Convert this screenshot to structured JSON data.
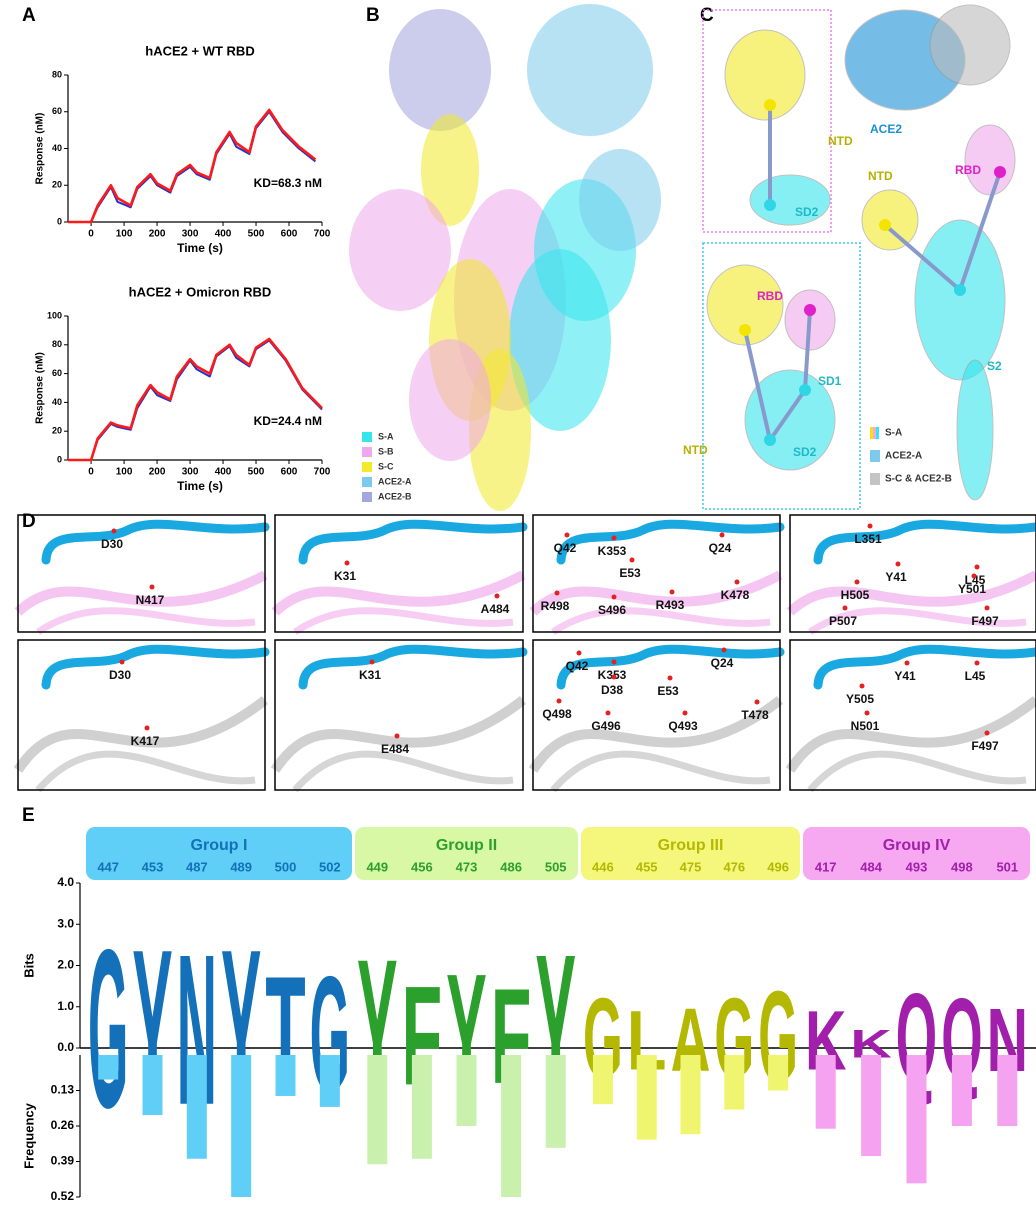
{
  "panel_labels": [
    "A",
    "B",
    "C",
    "D",
    "E"
  ],
  "chart_data": [
    {
      "type": "line",
      "title": "hACE2 + WT RBD",
      "x_label": "Time (s)",
      "y_label": "Response (nM)",
      "annotation": "KD=68.3 nM",
      "xlim": [
        -70,
        700
      ],
      "xticks": [
        0,
        100,
        200,
        300,
        400,
        500,
        600,
        700
      ],
      "ylim": [
        0,
        80
      ],
      "yticks": [
        0,
        20,
        40,
        60,
        80
      ],
      "x": [
        -70,
        0,
        20,
        60,
        80,
        120,
        140,
        180,
        200,
        240,
        260,
        300,
        320,
        360,
        380,
        420,
        440,
        480,
        500,
        540,
        580,
        630,
        680
      ],
      "series": [
        {
          "color": "#2233cc",
          "values": [
            0,
            0,
            8,
            19,
            11,
            8,
            18,
            25,
            20,
            16,
            25,
            30,
            26,
            23,
            37,
            48,
            41,
            37,
            51,
            60,
            49,
            40,
            33
          ]
        },
        {
          "color": "#ff1a1a",
          "values": [
            0,
            0,
            9,
            20,
            13,
            9,
            19,
            26,
            21,
            17,
            26,
            31,
            27,
            24,
            38,
            49,
            43,
            38,
            52,
            61,
            50,
            41,
            34
          ]
        }
      ]
    },
    {
      "type": "line",
      "title": "hACE2 + Omicron RBD",
      "x_label": "Time (s)",
      "y_label": "Response (nM)",
      "annotation": "KD=24.4 nM",
      "xlim": [
        -70,
        700
      ],
      "xticks": [
        0,
        100,
        200,
        300,
        400,
        500,
        600,
        700
      ],
      "ylim": [
        0,
        100
      ],
      "yticks": [
        0,
        20,
        40,
        60,
        80,
        100
      ],
      "x": [
        -70,
        0,
        20,
        60,
        80,
        120,
        140,
        180,
        200,
        240,
        260,
        300,
        320,
        360,
        380,
        420,
        440,
        480,
        500,
        540,
        590,
        640,
        700
      ],
      "series": [
        {
          "color": "#2233cc",
          "values": [
            0,
            0,
            14,
            25,
            23,
            21,
            36,
            51,
            45,
            41,
            56,
            69,
            63,
            58,
            72,
            79,
            71,
            65,
            77,
            83,
            69,
            49,
            35
          ]
        },
        {
          "color": "#ff1a1a",
          "values": [
            0,
            0,
            15,
            26,
            24,
            22,
            38,
            52,
            47,
            42,
            58,
            70,
            65,
            60,
            73,
            80,
            73,
            66,
            78,
            84,
            70,
            50,
            36
          ]
        }
      ]
    },
    {
      "type": "logo",
      "y_label": "Bits",
      "ylim": [
        0,
        4
      ],
      "yticks": [
        {
          "value": 0,
          "label": "0.0"
        },
        {
          "value": 1,
          "label": "1.0"
        },
        {
          "value": 2,
          "label": "2.0"
        },
        {
          "value": 3,
          "label": "3.0"
        },
        {
          "value": 4,
          "label": "4.0"
        }
      ],
      "freq_label": "Frequency",
      "freq_ylim": [
        0,
        0.52
      ],
      "freq_yticks": [
        0.13,
        0.26,
        0.39,
        0.52
      ],
      "groups": [
        {
          "name": "Group I",
          "color": "#1470b8",
          "header_color": "#5fcff7",
          "bar_color": "#5fcff7",
          "categories": [
            "447",
            "453",
            "487",
            "489",
            "500",
            "502"
          ],
          "letters": [
            "G",
            "Y",
            "N",
            "Y",
            "T",
            "G"
          ],
          "bits": [
            4.0,
            4.0,
            3.8,
            4.0,
            2.9,
            2.9
          ],
          "frequency": [
            0.09,
            0.22,
            0.38,
            0.52,
            0.15,
            0.19
          ]
        },
        {
          "name": "Group II",
          "color": "#2ca02c",
          "header_color": "#d9f8a6",
          "bar_color": "#c9f0ad",
          "categories": [
            "449",
            "456",
            "473",
            "486",
            "505"
          ],
          "letters": [
            "Y",
            "F",
            "Y",
            "F",
            "Y"
          ],
          "bits": [
            3.6,
            2.5,
            3.0,
            2.4,
            3.8
          ],
          "frequency": [
            0.4,
            0.38,
            0.26,
            0.52,
            0.34
          ]
        },
        {
          "name": "Group III",
          "color": "#b5b800",
          "header_color": "#f4f77c",
          "bar_color": "#eff56e",
          "categories": [
            "446",
            "455",
            "475",
            "476",
            "496"
          ],
          "letters": [
            "G",
            "L",
            "A",
            "G",
            "G"
          ],
          "bits": [
            2.0,
            1.5,
            1.6,
            2.0,
            2.3
          ],
          "frequency": [
            0.18,
            0.31,
            0.29,
            0.2,
            0.13
          ]
        },
        {
          "name": "Group IV",
          "color": "#a21fac",
          "header_color": "#f6a8f1",
          "bar_color": "#f5a3f0",
          "categories": [
            "417",
            "484",
            "493",
            "498",
            "501"
          ],
          "letters": [
            "K",
            "K",
            "Q",
            "Q",
            "N"
          ],
          "bits": [
            1.5,
            0.7,
            2.2,
            2.0,
            1.6
          ],
          "frequency": [
            0.27,
            0.37,
            0.47,
            0.26,
            0.26
          ]
        }
      ]
    }
  ],
  "panel_b": {
    "legend": [
      {
        "label": "S-A",
        "color": "#35e6ee"
      },
      {
        "label": "S-B",
        "color": "#f0a8ec"
      },
      {
        "label": "S-C",
        "color": "#f2ea2a"
      },
      {
        "label": "ACE2-A",
        "color": "#7ccbec"
      },
      {
        "label": "ACE2-B",
        "color": "#a4a6de"
      }
    ]
  },
  "panel_c": {
    "labels": [
      "NTD",
      "SD2",
      "RBD",
      "SD1",
      "NTD",
      "SD2",
      "ACE2",
      "RBD",
      "NTD",
      "S2"
    ],
    "legend": [
      "S-A",
      "ACE2-A",
      "S-C & ACE2-B"
    ]
  },
  "panel_d": {
    "rows": [
      [
        [
          "D30",
          "N417"
        ],
        [
          "K31",
          "A484"
        ],
        [
          "Q42",
          "K353",
          "Q24",
          "E53",
          "K478",
          "R498",
          "S496",
          "R493"
        ],
        [
          "L351",
          "Y41",
          "L45",
          "H505",
          "Y501",
          "P507",
          "F497"
        ]
      ],
      [
        [
          "D30",
          "K417"
        ],
        [
          "K31",
          "E484"
        ],
        [
          "Q42",
          "K353",
          "Q24",
          "D38",
          "E53",
          "Q498",
          "G496",
          "Q493",
          "T478"
        ],
        [
          "Y41",
          "L45",
          "Y505",
          "N501",
          "F497"
        ]
      ]
    ]
  }
}
